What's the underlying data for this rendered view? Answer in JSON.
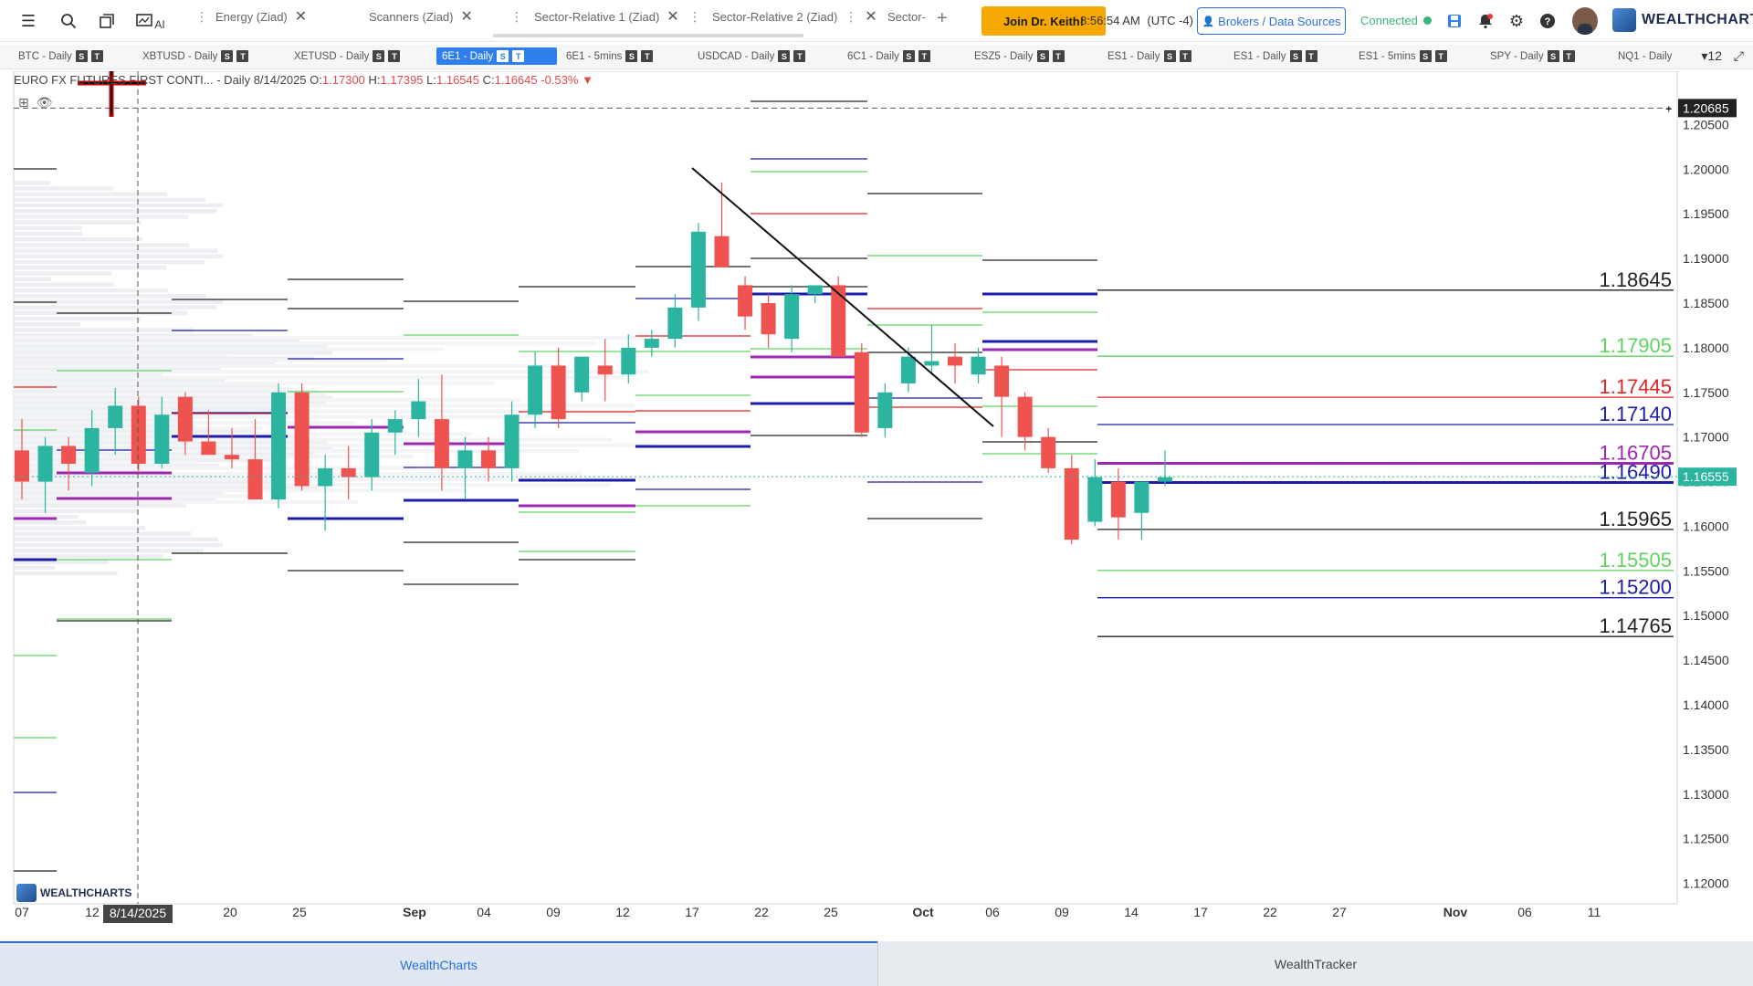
{
  "topbar": {
    "icons": [
      "menu-icon",
      "search-icon",
      "windows-icon",
      "ai-scan-icon"
    ],
    "ai_label": "AI",
    "tabs": [
      {
        "label": "Energy (Ziad)"
      },
      {
        "label": "Scanners (Ziad)"
      },
      {
        "label": "Sector-Relative 1 (Ziad)"
      },
      {
        "label": "Sector-Relative 2 (Ziad)"
      },
      {
        "label": "Sector-"
      }
    ],
    "add_tab": "+",
    "join_label": "Join Dr. Keith!",
    "time": "8:56:54 AM",
    "timezone": "(UTC -4)",
    "brokers_label": "Brokers / Data Sources",
    "connected_label": "Connected",
    "brand": "WEALTHCHARTS"
  },
  "chart_tabs": [
    {
      "label": "BTC - Daily"
    },
    {
      "label": "XBTUSD - Daily"
    },
    {
      "label": "XETUSD - Daily"
    },
    {
      "label": "6E1 - Daily",
      "active": true
    },
    {
      "label": "6E1 - 5mins"
    },
    {
      "label": "USDCAD - Daily"
    },
    {
      "label": "6C1 - Daily"
    },
    {
      "label": "ESZ5 - Daily"
    },
    {
      "label": "ES1 - Daily"
    },
    {
      "label": "ES1 - Daily"
    },
    {
      "label": "ES1 - 5mins"
    },
    {
      "label": "SPY - Daily"
    },
    {
      "label": "NQ1 - Daily"
    }
  ],
  "badge_s": "S",
  "badge_t": "T",
  "tab_count": "12",
  "legend": {
    "symbol": "EURO FX FUTURES FIRST CONTI...",
    "interval": "- Daily",
    "date": "8/14/2025",
    "o_label": "O:",
    "o": "1.17300",
    "h_label": "H:",
    "h": "1.17395",
    "l_label": "L:",
    "l": "1.16545",
    "c_label": "C:",
    "c": "1.16645",
    "change": "-0.53%",
    "arrow": "▼"
  },
  "chart_logo": "WEALTHCHARTS",
  "chart_data": {
    "type": "candlestick",
    "ylim": [
      1.1175,
      1.2075
    ],
    "y_ticks": [
      "1.20500",
      "1.20000",
      "1.19500",
      "1.19000",
      "1.18500",
      "1.18000",
      "1.17500",
      "1.17000",
      "1.16500",
      "1.16000",
      "1.15500",
      "1.15000",
      "1.14500",
      "1.14000",
      "1.13500",
      "1.13000",
      "1.12500",
      "1.12000"
    ],
    "x_ticks": [
      {
        "label": "07",
        "bold": false
      },
      {
        "label": "12",
        "bold": false
      },
      {
        "label": "20",
        "bold": false
      },
      {
        "label": "25",
        "bold": false
      },
      {
        "label": "Sep",
        "bold": true
      },
      {
        "label": "04",
        "bold": false
      },
      {
        "label": "09",
        "bold": false
      },
      {
        "label": "12",
        "bold": false
      },
      {
        "label": "17",
        "bold": false
      },
      {
        "label": "22",
        "bold": false
      },
      {
        "label": "25",
        "bold": false
      },
      {
        "label": "Oct",
        "bold": true
      },
      {
        "label": "06",
        "bold": false
      },
      {
        "label": "09",
        "bold": false
      },
      {
        "label": "14",
        "bold": false
      },
      {
        "label": "17",
        "bold": false
      },
      {
        "label": "22",
        "bold": false
      },
      {
        "label": "27",
        "bold": false
      },
      {
        "label": "Nov",
        "bold": true
      },
      {
        "label": "06",
        "bold": false
      },
      {
        "label": "11",
        "bold": false
      }
    ],
    "crosshair_date": "8/14/2025",
    "crosshair_price": "1.20685",
    "current_price": "1.16555",
    "candles": [
      [
        1.1685,
        1.172,
        1.163,
        1.165
      ],
      [
        1.165,
        1.17,
        1.1615,
        1.169
      ],
      [
        1.169,
        1.17,
        1.164,
        1.167
      ],
      [
        1.166,
        1.173,
        1.1645,
        1.171
      ],
      [
        1.171,
        1.1755,
        1.168,
        1.1735
      ],
      [
        1.1735,
        1.1745,
        1.166,
        1.167
      ],
      [
        1.167,
        1.1745,
        1.1665,
        1.1725
      ],
      [
        1.1745,
        1.175,
        1.168,
        1.1695
      ],
      [
        1.1695,
        1.173,
        1.168,
        1.168
      ],
      [
        1.168,
        1.171,
        1.1665,
        1.1675
      ],
      [
        1.1675,
        1.172,
        1.163,
        1.163
      ],
      [
        1.163,
        1.176,
        1.162,
        1.175
      ],
      [
        1.175,
        1.176,
        1.164,
        1.1645
      ],
      [
        1.1645,
        1.168,
        1.1595,
        1.1665
      ],
      [
        1.1665,
        1.169,
        1.163,
        1.1655
      ],
      [
        1.1655,
        1.172,
        1.164,
        1.1705
      ],
      [
        1.1705,
        1.173,
        1.168,
        1.172
      ],
      [
        1.172,
        1.1765,
        1.17,
        1.174
      ],
      [
        1.172,
        1.177,
        1.164,
        1.1665
      ],
      [
        1.1665,
        1.17,
        1.163,
        1.1685
      ],
      [
        1.1685,
        1.17,
        1.165,
        1.1665
      ],
      [
        1.1665,
        1.174,
        1.165,
        1.1725
      ],
      [
        1.1725,
        1.1795,
        1.171,
        1.178
      ],
      [
        1.178,
        1.18,
        1.171,
        1.172
      ],
      [
        1.175,
        1.179,
        1.174,
        1.179
      ],
      [
        1.178,
        1.181,
        1.174,
        1.177
      ],
      [
        1.177,
        1.1815,
        1.176,
        1.18
      ],
      [
        1.18,
        1.182,
        1.179,
        1.181
      ],
      [
        1.181,
        1.186,
        1.18,
        1.1845
      ],
      [
        1.1845,
        1.194,
        1.183,
        1.193
      ],
      [
        1.1925,
        1.1985,
        1.189,
        1.189
      ],
      [
        1.187,
        1.188,
        1.182,
        1.1835
      ],
      [
        1.185,
        1.186,
        1.18,
        1.1815
      ],
      [
        1.181,
        1.187,
        1.1795,
        1.186
      ],
      [
        1.186,
        1.187,
        1.185,
        1.187
      ],
      [
        1.187,
        1.188,
        1.179,
        1.179
      ],
      [
        1.1795,
        1.1805,
        1.17,
        1.1705
      ],
      [
        1.171,
        1.176,
        1.17,
        1.175
      ],
      [
        1.176,
        1.18,
        1.175,
        1.179
      ],
      [
        1.178,
        1.1825,
        1.177,
        1.1785
      ],
      [
        1.179,
        1.1805,
        1.176,
        1.178
      ],
      [
        1.177,
        1.18,
        1.176,
        1.179
      ],
      [
        1.178,
        1.179,
        1.17,
        1.1745
      ],
      [
        1.1745,
        1.175,
        1.1685,
        1.17
      ],
      [
        1.17,
        1.171,
        1.166,
        1.1665
      ],
      [
        1.1665,
        1.168,
        1.158,
        1.1585
      ],
      [
        1.1605,
        1.1675,
        1.16,
        1.1655
      ],
      [
        1.165,
        1.1665,
        1.1585,
        1.161
      ],
      [
        1.1615,
        1.165,
        1.1585,
        1.165
      ],
      [
        1.165,
        1.1685,
        1.1645,
        1.1655
      ]
    ],
    "levels": [
      {
        "price": "1.18645",
        "color": "#222222"
      },
      {
        "price": "1.17905",
        "color": "#5fd35f"
      },
      {
        "price": "1.17445",
        "color": "#e02424"
      },
      {
        "price": "1.17140",
        "color": "#1c1ca8"
      },
      {
        "price": "1.16705",
        "color": "#9c27b0"
      },
      {
        "price": "1.16490",
        "color": "#1c1ca8"
      },
      {
        "price": "1.15965",
        "color": "#222222"
      },
      {
        "price": "1.15505",
        "color": "#5fd35f"
      },
      {
        "price": "1.15200",
        "color": "#1c1ca8"
      },
      {
        "price": "1.14765",
        "color": "#222222"
      }
    ]
  },
  "colors": {
    "up": "#2bb5a0",
    "down": "#ef5350",
    "accent": "#2f80ed",
    "join": "#f5a800"
  },
  "bottom_tabs": [
    {
      "label": "WealthCharts"
    },
    {
      "label": "WealthTracker"
    }
  ]
}
